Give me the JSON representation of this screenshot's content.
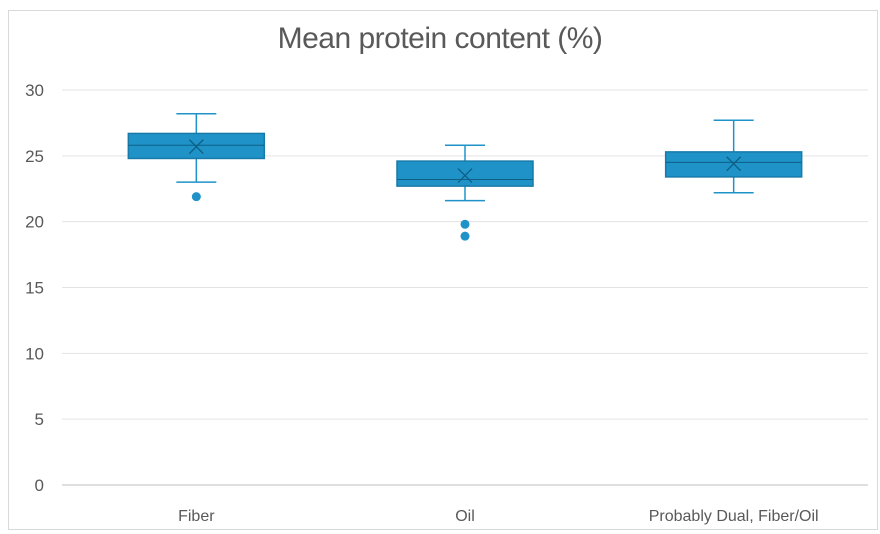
{
  "chart_data": {
    "type": "box",
    "title": "Mean protein content (%)",
    "xlabel": "",
    "ylabel": "",
    "ylim": [
      0,
      30
    ],
    "yticks": [
      0,
      5,
      10,
      15,
      20,
      25,
      30
    ],
    "grid": true,
    "legend": "none",
    "color": "#1f93c8",
    "edge_color": "#177aa8",
    "categories": [
      "Fiber",
      "Oil",
      "Probably Dual, Fiber/Oil"
    ],
    "boxes": [
      {
        "category": "Fiber",
        "whisker_low": 23.0,
        "q1": 24.8,
        "median": 25.8,
        "q3": 26.7,
        "whisker_high": 28.2,
        "mean": 25.7,
        "outliers": [
          21.9
        ]
      },
      {
        "category": "Oil",
        "whisker_low": 21.6,
        "q1": 22.7,
        "median": 23.2,
        "q3": 24.6,
        "whisker_high": 25.8,
        "mean": 23.5,
        "outliers": [
          19.8,
          18.9
        ]
      },
      {
        "category": "Probably Dual, Fiber/Oil",
        "whisker_low": 22.2,
        "q1": 23.4,
        "median": 24.5,
        "q3": 25.3,
        "whisker_high": 27.7,
        "mean": 24.4,
        "outliers": []
      }
    ]
  }
}
